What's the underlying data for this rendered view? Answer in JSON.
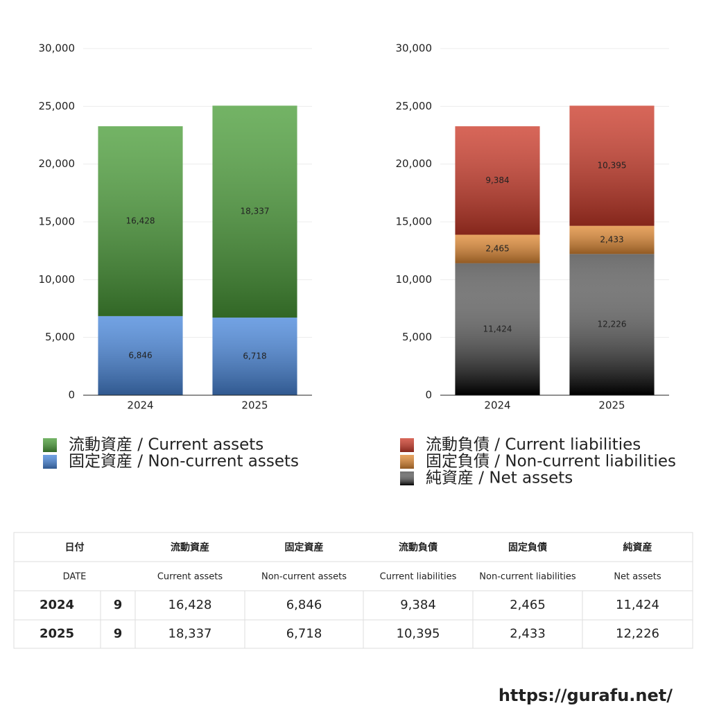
{
  "chart_data": [
    {
      "type": "bar",
      "stacked": true,
      "categories": [
        "2024",
        "2025"
      ],
      "series": [
        {
          "name": "流動資産 / Current assets",
          "color": "#4c9e3a",
          "values": [
            16428,
            18337
          ],
          "value_labels": [
            "16,428",
            "18,337"
          ]
        },
        {
          "name": "固定資産 / Non-current assets",
          "color": "#4a88dc",
          "values": [
            6846,
            6718
          ],
          "value_labels": [
            "6,846",
            "6,718"
          ]
        }
      ],
      "ylim": [
        0,
        30000
      ],
      "yticks": [
        0,
        {
          "value": 5000,
          "label": "5,000"
        },
        {
          "value": 10000,
          "label": "10,000"
        },
        {
          "value": 15000,
          "label": "15,000"
        },
        {
          "value": 20000,
          "label": "20,000"
        },
        {
          "value": 25000,
          "label": "25,000"
        },
        {
          "value": 30000,
          "label": "30,000"
        }
      ],
      "grid": true
    },
    {
      "type": "bar",
      "stacked": true,
      "categories": [
        "2024",
        "2025"
      ],
      "series": [
        {
          "name": "流動負債 / Current liabilities",
          "color": "#cc3b2a",
          "values": [
            9384,
            10395
          ],
          "value_labels": [
            "9,384",
            "10,395"
          ]
        },
        {
          "name": "固定負債 / Non-current liabilities",
          "color": "#e08a35",
          "values": [
            2465,
            2433
          ],
          "value_labels": [
            "2,465",
            "2,433"
          ]
        },
        {
          "name": "純資産 / Net assets",
          "color": "#555555",
          "values": [
            11424,
            12226
          ],
          "value_labels": [
            "11,424",
            "12,226"
          ]
        }
      ],
      "ylim": [
        0,
        30000
      ],
      "yticks": [
        0,
        {
          "value": 5000,
          "label": "5,000"
        },
        {
          "value": 10000,
          "label": "10,000"
        },
        {
          "value": 15000,
          "label": "15,000"
        },
        {
          "value": 20000,
          "label": "20,000"
        },
        {
          "value": 25000,
          "label": "25,000"
        },
        {
          "value": 30000,
          "label": "30,000"
        }
      ],
      "grid": true
    }
  ],
  "table": {
    "header_jp": [
      "日付",
      "流動資産",
      "固定資産",
      "流動負債",
      "固定負債",
      "純資産"
    ],
    "header_en": [
      "DATE",
      "Current assets",
      "Non-current assets",
      "Current liabilities",
      "Non-current liabilities",
      "Net assets"
    ],
    "rows": [
      [
        "2024",
        "9",
        "16,428",
        "6,846",
        "9,384",
        "2,465",
        "11,424"
      ],
      [
        "2025",
        "9",
        "18,337",
        "6,718",
        "10,395",
        "2,433",
        "12,226"
      ]
    ]
  },
  "footer": "https://gurafu.net/"
}
